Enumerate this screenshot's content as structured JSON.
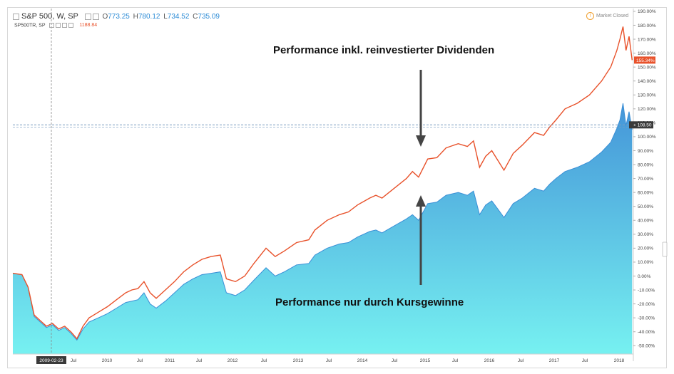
{
  "header": {
    "symbol": "S&P 500, W, SP",
    "ohlc": [
      {
        "label": "O",
        "value": "773.25"
      },
      {
        "label": "H",
        "value": "780.12"
      },
      {
        "label": "L",
        "value": "734.52"
      },
      {
        "label": "C",
        "value": "735.09"
      }
    ],
    "tr_symbol": "SP500TR, SP",
    "tr_value": "1188.84",
    "market_status": "Market Closed"
  },
  "annotations": {
    "top": "Performance inkl. reinvestierter Dividenden",
    "bottom": "Performance nur durch Kursgewinne"
  },
  "badges": {
    "tr_last": "155.34%",
    "crosshair": "108.50"
  },
  "colors": {
    "tr_line": "#e8522b",
    "price_line": "#3a8fd6",
    "area_top": "#3a8fd6",
    "area_bottom": "#6ff0f0",
    "crosshair": "#7a9ec0"
  },
  "chart_data": {
    "type": "area",
    "x_tick_labels": [
      "2009-02-23",
      "Jul",
      "2010",
      "Jul",
      "2011",
      "Jul",
      "2012",
      "Jul",
      "2013",
      "Jul",
      "2014",
      "Jul",
      "2015",
      "Jul",
      "2016",
      "Jul",
      "2017",
      "Jul",
      "2018"
    ],
    "y_tick_labels": [
      "190.00%",
      "180.00%",
      "170.00%",
      "160.00%",
      "150.00%",
      "140.00%",
      "130.00%",
      "120.00%",
      "110.00%",
      "100.00%",
      "90.00%",
      "80.00%",
      "70.00%",
      "60.00%",
      "50.00%",
      "40.00%",
      "30.00%",
      "20.00%",
      "10.00%",
      "0.00%",
      "-10.00%",
      "-20.00%",
      "-30.00%",
      "-40.00%",
      "-50.00%"
    ],
    "ylim": [
      -56,
      192
    ],
    "xlim": [
      2008.05,
      2018.22
    ],
    "series": [
      {
        "name": "SP500TR, SP",
        "points": [
          [
            2008.05,
            2
          ],
          [
            2008.2,
            1
          ],
          [
            2008.3,
            -8
          ],
          [
            2008.4,
            -28
          ],
          [
            2008.5,
            -32
          ],
          [
            2008.6,
            -36
          ],
          [
            2008.7,
            -34
          ],
          [
            2008.8,
            -38
          ],
          [
            2008.9,
            -36
          ],
          [
            2009.0,
            -40
          ],
          [
            2009.1,
            -45
          ],
          [
            2009.2,
            -36
          ],
          [
            2009.3,
            -30
          ],
          [
            2009.45,
            -26
          ],
          [
            2009.6,
            -22
          ],
          [
            2009.75,
            -17
          ],
          [
            2009.9,
            -12
          ],
          [
            2010.0,
            -10
          ],
          [
            2010.1,
            -9
          ],
          [
            2010.2,
            -4
          ],
          [
            2010.3,
            -12
          ],
          [
            2010.4,
            -16
          ],
          [
            2010.55,
            -10
          ],
          [
            2010.7,
            -4
          ],
          [
            2010.85,
            3
          ],
          [
            2011.0,
            8
          ],
          [
            2011.15,
            12
          ],
          [
            2011.3,
            14
          ],
          [
            2011.45,
            15
          ],
          [
            2011.55,
            -2
          ],
          [
            2011.7,
            -4
          ],
          [
            2011.85,
            0
          ],
          [
            2012.0,
            9
          ],
          [
            2012.2,
            20
          ],
          [
            2012.35,
            14
          ],
          [
            2012.5,
            18
          ],
          [
            2012.7,
            24
          ],
          [
            2012.9,
            26
          ],
          [
            2013.0,
            33
          ],
          [
            2013.2,
            40
          ],
          [
            2013.4,
            44
          ],
          [
            2013.55,
            46
          ],
          [
            2013.7,
            51
          ],
          [
            2013.9,
            56
          ],
          [
            2014.0,
            58
          ],
          [
            2014.1,
            56
          ],
          [
            2014.3,
            63
          ],
          [
            2014.5,
            70
          ],
          [
            2014.6,
            75
          ],
          [
            2014.7,
            71
          ],
          [
            2014.85,
            84
          ],
          [
            2015.0,
            85
          ],
          [
            2015.15,
            92
          ],
          [
            2015.35,
            95
          ],
          [
            2015.5,
            93
          ],
          [
            2015.6,
            97
          ],
          [
            2015.7,
            78
          ],
          [
            2015.8,
            86
          ],
          [
            2015.9,
            90
          ],
          [
            2016.0,
            83
          ],
          [
            2016.1,
            76
          ],
          [
            2016.25,
            88
          ],
          [
            2016.4,
            94
          ],
          [
            2016.6,
            103
          ],
          [
            2016.75,
            101
          ],
          [
            2016.85,
            107
          ],
          [
            2016.95,
            112
          ],
          [
            2017.1,
            120
          ],
          [
            2017.3,
            124
          ],
          [
            2017.5,
            130
          ],
          [
            2017.7,
            140
          ],
          [
            2017.85,
            150
          ],
          [
            2017.95,
            162
          ],
          [
            2018.0,
            170
          ],
          [
            2018.05,
            179
          ],
          [
            2018.1,
            162
          ],
          [
            2018.15,
            172
          ],
          [
            2018.2,
            155
          ]
        ]
      },
      {
        "name": "S&P 500, W, SP",
        "points": [
          [
            2008.05,
            2
          ],
          [
            2008.2,
            1
          ],
          [
            2008.3,
            -8
          ],
          [
            2008.4,
            -29
          ],
          [
            2008.5,
            -33
          ],
          [
            2008.6,
            -37
          ],
          [
            2008.7,
            -35
          ],
          [
            2008.8,
            -39
          ],
          [
            2008.9,
            -37
          ],
          [
            2009.0,
            -41
          ],
          [
            2009.1,
            -46
          ],
          [
            2009.2,
            -38
          ],
          [
            2009.3,
            -33
          ],
          [
            2009.45,
            -30
          ],
          [
            2009.6,
            -27
          ],
          [
            2009.75,
            -23
          ],
          [
            2009.9,
            -19
          ],
          [
            2010.0,
            -18
          ],
          [
            2010.1,
            -17
          ],
          [
            2010.2,
            -12
          ],
          [
            2010.3,
            -20
          ],
          [
            2010.4,
            -23
          ],
          [
            2010.55,
            -18
          ],
          [
            2010.7,
            -12
          ],
          [
            2010.85,
            -6
          ],
          [
            2011.0,
            -2
          ],
          [
            2011.15,
            1
          ],
          [
            2011.3,
            2
          ],
          [
            2011.45,
            3
          ],
          [
            2011.55,
            -12
          ],
          [
            2011.7,
            -14
          ],
          [
            2011.85,
            -10
          ],
          [
            2012.0,
            -3
          ],
          [
            2012.2,
            6
          ],
          [
            2012.35,
            0
          ],
          [
            2012.5,
            3
          ],
          [
            2012.7,
            8
          ],
          [
            2012.9,
            9
          ],
          [
            2013.0,
            15
          ],
          [
            2013.2,
            20
          ],
          [
            2013.4,
            23
          ],
          [
            2013.55,
            24
          ],
          [
            2013.7,
            28
          ],
          [
            2013.9,
            32
          ],
          [
            2014.0,
            33
          ],
          [
            2014.1,
            31
          ],
          [
            2014.3,
            36
          ],
          [
            2014.5,
            41
          ],
          [
            2014.6,
            44
          ],
          [
            2014.7,
            40
          ],
          [
            2014.85,
            52
          ],
          [
            2015.0,
            53
          ],
          [
            2015.15,
            58
          ],
          [
            2015.35,
            60
          ],
          [
            2015.5,
            58
          ],
          [
            2015.6,
            61
          ],
          [
            2015.7,
            44
          ],
          [
            2015.8,
            51
          ],
          [
            2015.9,
            54
          ],
          [
            2016.0,
            48
          ],
          [
            2016.1,
            42
          ],
          [
            2016.25,
            52
          ],
          [
            2016.4,
            56
          ],
          [
            2016.6,
            63
          ],
          [
            2016.75,
            61
          ],
          [
            2016.85,
            66
          ],
          [
            2016.95,
            70
          ],
          [
            2017.1,
            75
          ],
          [
            2017.3,
            78
          ],
          [
            2017.5,
            82
          ],
          [
            2017.7,
            89
          ],
          [
            2017.85,
            96
          ],
          [
            2017.95,
            106
          ],
          [
            2018.0,
            112
          ],
          [
            2018.05,
            124
          ],
          [
            2018.1,
            108
          ],
          [
            2018.15,
            118
          ],
          [
            2018.2,
            105
          ]
        ]
      }
    ],
    "crosshair": {
      "x": "2009-02-23",
      "y": 108.5
    }
  }
}
